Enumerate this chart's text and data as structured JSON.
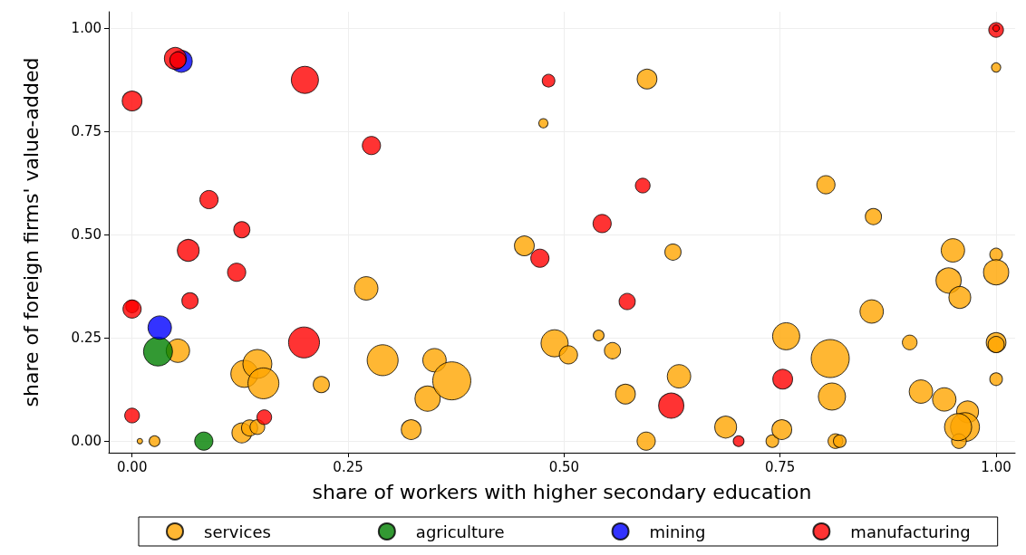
{
  "chart_data": {
    "type": "bubble",
    "xlabel": "share of workers with higher secondary education",
    "ylabel": "share of foreign firms' value-added",
    "xlim": [
      -0.027,
      1.022
    ],
    "ylim": [
      -0.028,
      1.04
    ],
    "xticks": [
      {
        "value": 0,
        "label": "0.00"
      },
      {
        "value": 0.25,
        "label": "0.25"
      },
      {
        "value": 0.5,
        "label": "0.50"
      },
      {
        "value": 0.75,
        "label": "0.75"
      },
      {
        "value": 1,
        "label": "1.00"
      }
    ],
    "yticks": [
      {
        "value": 0,
        "label": "0.00"
      },
      {
        "value": 0.25,
        "label": "0.25"
      },
      {
        "value": 0.5,
        "label": "0.50"
      },
      {
        "value": 0.75,
        "label": "0.75"
      },
      {
        "value": 1,
        "label": "1.00"
      }
    ],
    "grid": true,
    "legend": "bottom",
    "marker": "circle",
    "series": [
      {
        "name": "services",
        "color": "#ffa500",
        "x": [
          0.009,
          0.026,
          0.053,
          0.127,
          0.136,
          0.145,
          0.13,
          0.145,
          0.152,
          0.219,
          0.271,
          0.29,
          0.323,
          0.342,
          0.35,
          0.37,
          0.476,
          0.454,
          0.489,
          0.505,
          0.54,
          0.556,
          0.571,
          0.633,
          0.595,
          0.596,
          0.626,
          0.687,
          0.741,
          0.752,
          0.757,
          0.808,
          0.81,
          0.814,
          0.819,
          0.803,
          0.858,
          0.856,
          0.9,
          0.913,
          0.94,
          0.95,
          0.945,
          0.958,
          0.967,
          0.964,
          0.957,
          0.956,
          1.0,
          1.0,
          1.0,
          1.0,
          1.0,
          1.0
        ],
        "values": [
          0,
          0,
          0.219,
          0.02,
          0.032,
          0.034,
          0.163,
          0.187,
          0.14,
          0.137,
          0.37,
          0.196,
          0.028,
          0.103,
          0.196,
          0.146,
          0.77,
          0.473,
          0.237,
          0.209,
          0.256,
          0.219,
          0.114,
          0.157,
          0,
          0.877,
          0.458,
          0.034,
          0,
          0.028,
          0.254,
          0.2,
          0.108,
          0,
          0,
          0.621,
          0.544,
          0.314,
          0.239,
          0.12,
          0.101,
          0.462,
          0.389,
          0.348,
          0.071,
          0.034,
          0,
          0.034,
          0.905,
          0.452,
          0.409,
          0.239,
          0.234,
          0.15
        ],
        "sizes": [
          0.02,
          0.08,
          0.38,
          0.27,
          0.18,
          0.15,
          0.51,
          0.58,
          0.66,
          0.18,
          0.38,
          0.66,
          0.27,
          0.44,
          0.38,
          1.0,
          0.06,
          0.27,
          0.51,
          0.23,
          0.08,
          0.18,
          0.27,
          0.38,
          0.23,
          0.27,
          0.18,
          0.33,
          0.11,
          0.27,
          0.51,
          1.0,
          0.51,
          0.15,
          0.11,
          0.23,
          0.18,
          0.38,
          0.15,
          0.38,
          0.38,
          0.38,
          0.44,
          0.33,
          0.33,
          0.58,
          0.15,
          0.51,
          0.06,
          0.11,
          0.44,
          0.27,
          0.18,
          0.11
        ]
      },
      {
        "name": "agriculture",
        "color": "#008000",
        "x": [
          0.03,
          0.083
        ],
        "values": [
          0.217,
          0
        ],
        "sizes": [
          0.58,
          0.23
        ]
      },
      {
        "name": "mining",
        "color": "#0000ff",
        "x": [
          0.057,
          0.032
        ],
        "values": [
          0.92,
          0.275
        ],
        "sizes": [
          0.33,
          0.38
        ]
      },
      {
        "name": "manufacturing",
        "color": "#ff0000",
        "x": [
          0.05,
          0.053,
          0,
          0.2,
          0.277,
          0.089,
          0.127,
          0.065,
          0.121,
          0.067,
          0,
          0,
          0.199,
          0,
          0.153,
          0.482,
          0.591,
          0.544,
          0.472,
          0.573,
          0.624,
          0.753,
          0.702,
          1.0,
          1.0
        ],
        "values": [
          0.927,
          0.923,
          0.824,
          0.875,
          0.716,
          0.585,
          0.512,
          0.462,
          0.409,
          0.34,
          0.326,
          0.32,
          0.239,
          0.062,
          0.058,
          0.873,
          0.619,
          0.527,
          0.443,
          0.338,
          0.086,
          0.15,
          0,
          0.996,
          1.0
        ],
        "sizes": [
          0.33,
          0.18,
          0.27,
          0.51,
          0.23,
          0.23,
          0.18,
          0.33,
          0.23,
          0.18,
          0.11,
          0.23,
          0.66,
          0.15,
          0.15,
          0.11,
          0.15,
          0.23,
          0.23,
          0.18,
          0.44,
          0.27,
          0.08,
          0.15,
          0.03
        ]
      }
    ]
  }
}
